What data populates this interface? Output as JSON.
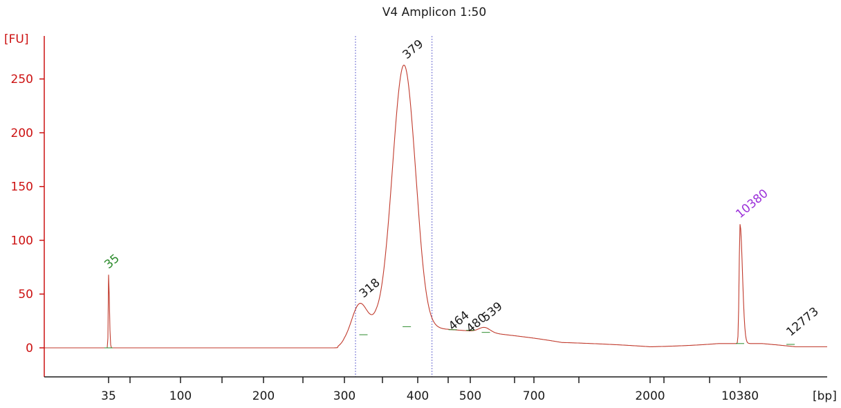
{
  "chart_data": {
    "type": "line",
    "title": "V4 Amplicon 1:50",
    "ylabel": "[FU]",
    "xlabel": "[bp]",
    "ylim": [
      -27,
      290
    ],
    "y_ticks": [
      0,
      50,
      100,
      150,
      200,
      250
    ],
    "x_tick_labels": [
      "35",
      "100",
      "200",
      "300",
      "400",
      "500",
      "700",
      "2000",
      "10380"
    ],
    "colors": {
      "axis": "#cc1111",
      "trace": "#c0392b",
      "marker": "#2a8a2a",
      "upper_marker": "#9b30d9",
      "guide": "#6a6ad0"
    },
    "peaks": [
      {
        "label": "35",
        "size_bp": 35,
        "height": 68,
        "color": "#2a8a2a"
      },
      {
        "label": "318",
        "size_bp": 318,
        "height": 41,
        "color": "#1a1a1a"
      },
      {
        "label": "379",
        "size_bp": 379,
        "height": 263,
        "color": "#1a1a1a"
      },
      {
        "label": "464",
        "size_bp": 464,
        "height": 12,
        "color": "#1a1a1a"
      },
      {
        "label": "480",
        "size_bp": 480,
        "height": 11,
        "color": "#1a1a1a"
      },
      {
        "label": "539",
        "size_bp": 539,
        "height": 19,
        "color": "#1a1a1a"
      },
      {
        "label": "10380",
        "size_bp": 10380,
        "height": 115,
        "color": "#9b30d9"
      },
      {
        "label": "12773",
        "size_bp": 12773,
        "height": 4,
        "color": "#1a1a1a"
      }
    ],
    "region_bp": [
      300,
      420
    ]
  }
}
